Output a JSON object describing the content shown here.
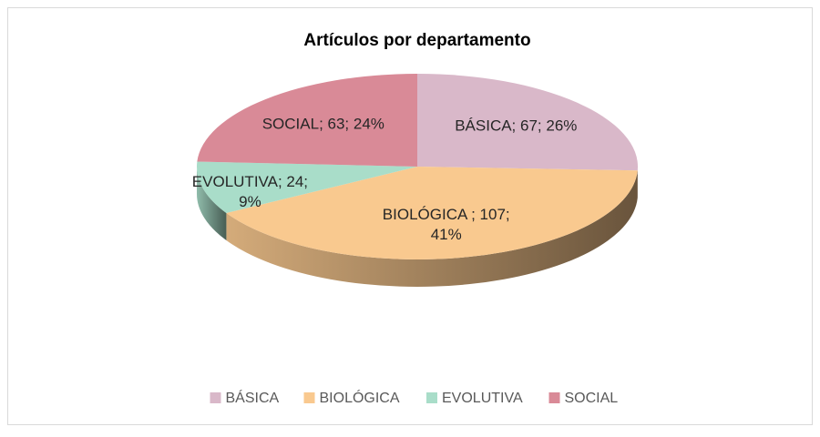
{
  "chart_data": {
    "type": "pie3d",
    "title": "Artículos por departamento",
    "categories": [
      "BÁSICA",
      "BIOLÓGICA",
      "EVOLUTIVA",
      "SOCIAL"
    ],
    "values": [
      67,
      107,
      24,
      63
    ],
    "value_labels": [
      [
        "BÁSICA; 67; 26%"
      ],
      [
        "BIOLÓGICA ; 107;",
        "41%"
      ],
      [
        "EVOLUTIVA; 24;",
        "9%"
      ],
      [
        "SOCIAL; 63; 24%"
      ]
    ],
    "colors": [
      "#d9b8c9",
      "#f9c98f",
      "#a9ddc9",
      "#d98a97"
    ],
    "legend": "bottom"
  }
}
